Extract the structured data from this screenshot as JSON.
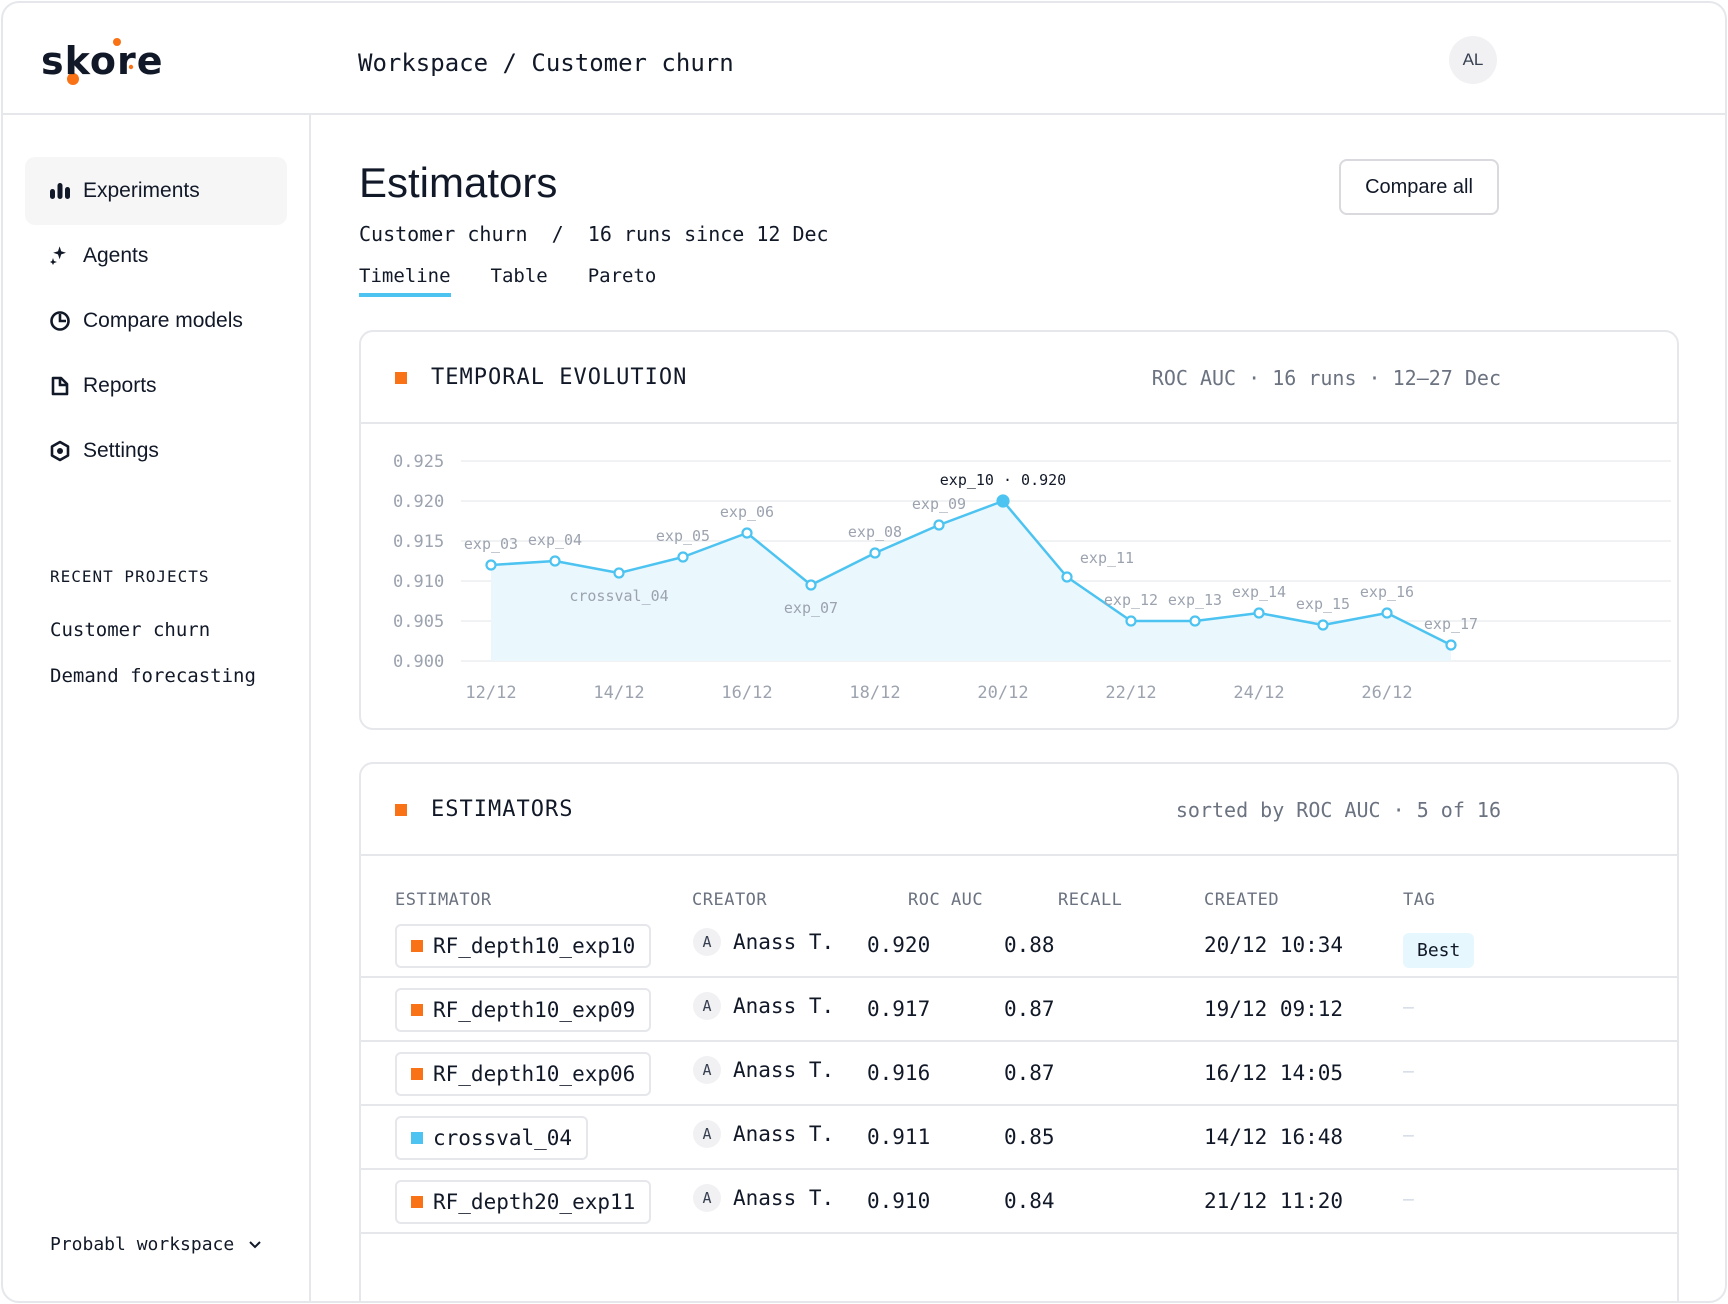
{
  "app": {
    "logo_text": "skore"
  },
  "header": {
    "breadcrumb": "Workspace / Customer churn",
    "avatar_initials": "AL"
  },
  "sidebar": {
    "items": [
      {
        "label": "Experiments",
        "icon": "bar-chart-icon",
        "active": true
      },
      {
        "label": "Agents",
        "icon": "sparkle-icon",
        "active": false
      },
      {
        "label": "Compare models",
        "icon": "pie-chart-icon",
        "active": false
      },
      {
        "label": "Reports",
        "icon": "report-icon",
        "active": false
      },
      {
        "label": "Settings",
        "icon": "gear-icon",
        "active": false
      }
    ],
    "recent_heading": "RECENT PROJECTS",
    "recent_projects": [
      "Customer churn",
      "Demand forecasting"
    ],
    "workspace_label": "Probabl workspace"
  },
  "main": {
    "title": "Estimators",
    "compare_button": "Compare all",
    "subtitle": "Customer churn  /  16 runs since 12 Dec",
    "tabs": [
      {
        "label": "Timeline",
        "active": true
      },
      {
        "label": "Table",
        "active": false
      },
      {
        "label": "Pareto",
        "active": false
      }
    ]
  },
  "timeline_card": {
    "title": "TEMPORAL EVOLUTION",
    "meta": "ROC AUC · 16 runs · 12–27 Dec"
  },
  "chart_data": {
    "type": "area",
    "ylim": [
      0.9,
      0.925
    ],
    "yticks": [
      "0.925",
      "0.920",
      "0.915",
      "0.910",
      "0.905",
      "0.900"
    ],
    "xticks": [
      "12/12",
      "14/12",
      "16/12",
      "18/12",
      "20/12",
      "22/12",
      "24/12",
      "26/12"
    ],
    "highlight_label": "exp_10 · 0.920",
    "points": [
      {
        "day": 12,
        "value": 0.912,
        "label": "exp_03"
      },
      {
        "day": 13,
        "value": 0.9125,
        "label": "exp_04"
      },
      {
        "day": 14,
        "value": 0.911,
        "label": "crossval_04"
      },
      {
        "day": 15,
        "value": 0.913,
        "label": "exp_05"
      },
      {
        "day": 16,
        "value": 0.916,
        "label": "exp_06"
      },
      {
        "day": 17,
        "value": 0.9095,
        "label": "exp_07"
      },
      {
        "day": 18,
        "value": 0.9135,
        "label": "exp_08"
      },
      {
        "day": 19,
        "value": 0.917,
        "label": "exp_09"
      },
      {
        "day": 20,
        "value": 0.92,
        "label": "exp_10"
      },
      {
        "day": 21,
        "value": 0.9105,
        "label": "exp_11"
      },
      {
        "day": 22,
        "value": 0.905,
        "label": "exp_12"
      },
      {
        "day": 23,
        "value": 0.905,
        "label": "exp_13"
      },
      {
        "day": 24,
        "value": 0.906,
        "label": "exp_14"
      },
      {
        "day": 25,
        "value": 0.9045,
        "label": "exp_15"
      },
      {
        "day": 26,
        "value": 0.906,
        "label": "exp_16"
      },
      {
        "day": 27,
        "value": 0.902,
        "label": "exp_17"
      }
    ],
    "colors": {
      "line": "#4cc3f0",
      "fill": "#eaf7fd"
    }
  },
  "table_card": {
    "title": "ESTIMATORS",
    "meta": "sorted by ROC AUC · 5 of 16",
    "columns": [
      "ESTIMATOR",
      "CREATOR",
      "ROC AUC",
      "RECALL",
      "CREATED",
      "TAG"
    ],
    "rows": [
      {
        "estimator": "RF_depth10_exp10",
        "color": "#f97316",
        "creator_initial": "A",
        "creator": "Anass T.",
        "roc_auc": "0.920",
        "recall": "0.88",
        "created": "20/12 10:34",
        "tag": "Best"
      },
      {
        "estimator": "RF_depth10_exp09",
        "color": "#f97316",
        "creator_initial": "A",
        "creator": "Anass T.",
        "roc_auc": "0.917",
        "recall": "0.87",
        "created": "19/12 09:12",
        "tag": "—"
      },
      {
        "estimator": "RF_depth10_exp06",
        "color": "#f97316",
        "creator_initial": "A",
        "creator": "Anass T.",
        "roc_auc": "0.916",
        "recall": "0.87",
        "created": "16/12 14:05",
        "tag": "—"
      },
      {
        "estimator": "crossval_04",
        "color": "#4cc3f0",
        "creator_initial": "A",
        "creator": "Anass T.",
        "roc_auc": "0.911",
        "recall": "0.85",
        "created": "14/12 16:48",
        "tag": "—"
      },
      {
        "estimator": "RF_depth20_exp11",
        "color": "#f97316",
        "creator_initial": "A",
        "creator": "Anass T.",
        "roc_auc": "0.910",
        "recall": "0.84",
        "created": "21/12 11:20",
        "tag": "—"
      }
    ]
  }
}
